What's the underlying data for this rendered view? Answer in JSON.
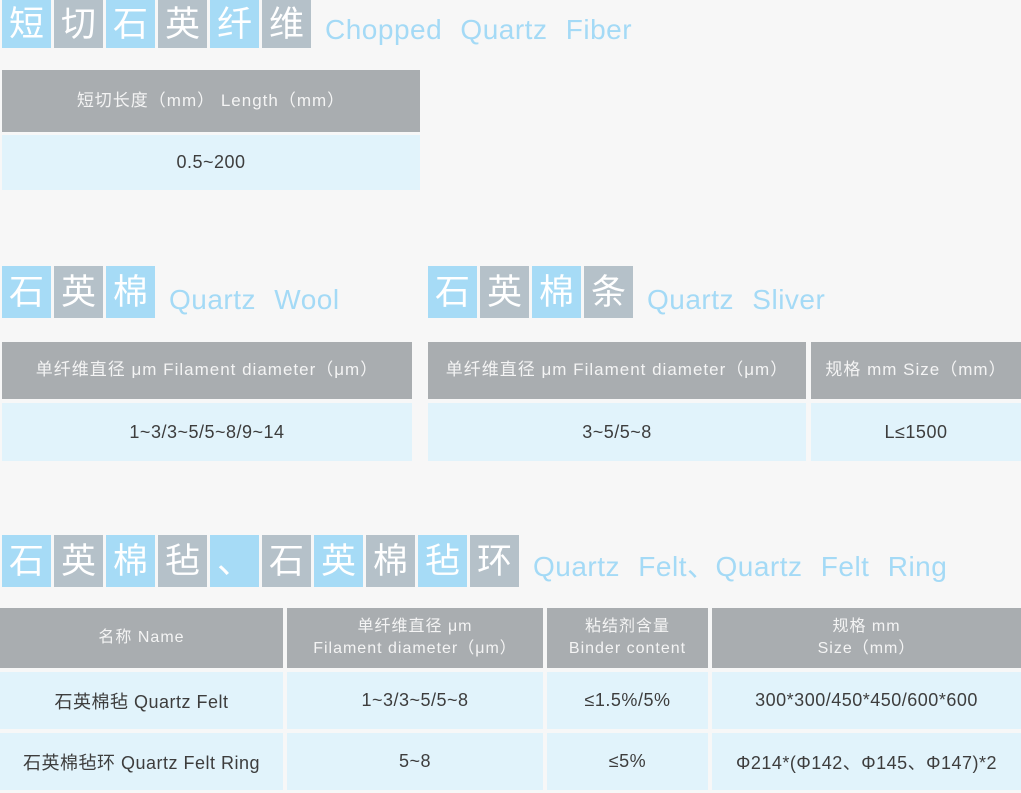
{
  "colors": {
    "page_bg": "#f7f7f7",
    "box_blue": "#a6dbf6",
    "box_gray": "#b5c1c9",
    "header_bg": "#a9adb0",
    "header_text": "#f4f4f4",
    "row_bg": "#e1f3fb",
    "cell_text": "#3d3d3d",
    "title_blue": "#a4daf6"
  },
  "section_chopped": {
    "title_chars": [
      "短",
      "切",
      "石",
      "英",
      "纤",
      "维"
    ],
    "title_en": "Chopped Quartz Fiber",
    "table": {
      "header": "短切长度（mm）  Length（mm）",
      "value": "0.5~200"
    }
  },
  "section_wool": {
    "title_chars": [
      "石",
      "英",
      "棉"
    ],
    "title_en": "Quartz Wool",
    "table": {
      "header": "单纤维直径  μm  Filament diameter（μm）",
      "value": "1~3/3~5/5~8/9~14"
    }
  },
  "section_sliver": {
    "title_chars": [
      "石",
      "英",
      "棉",
      "条"
    ],
    "title_en": "Quartz Sliver",
    "table": {
      "columns": [
        {
          "header": "单纤维直径  μm  Filament diameter（μm）",
          "value": "3~5/5~8"
        },
        {
          "header": "规格  mm  Size（mm）",
          "value": "L≤1500"
        }
      ]
    }
  },
  "section_felt": {
    "title_chars": [
      "石",
      "英",
      "棉",
      "毡",
      "、",
      "石",
      "英",
      "棉",
      "毡",
      "环"
    ],
    "title_en": "Quartz Felt、Quartz Felt Ring",
    "table": {
      "headers": [
        {
          "line1": "名称  Name",
          "line2": ""
        },
        {
          "line1": "单纤维直径  μm",
          "line2": "Filament diameter（μm）"
        },
        {
          "line1": "粘结剂含量",
          "line2": "Binder content"
        },
        {
          "line1": "规格  mm",
          "line2": "Size（mm）"
        }
      ],
      "rows": [
        [
          "石英棉毡  Quartz Felt",
          "1~3/3~5/5~8",
          "≤1.5%/5%",
          "300*300/450*450/600*600"
        ],
        [
          "石英棉毡环  Quartz Felt Ring",
          "5~8",
          "≤5%",
          "Φ214*(Φ142、Φ145、Φ147)*2"
        ]
      ]
    }
  }
}
